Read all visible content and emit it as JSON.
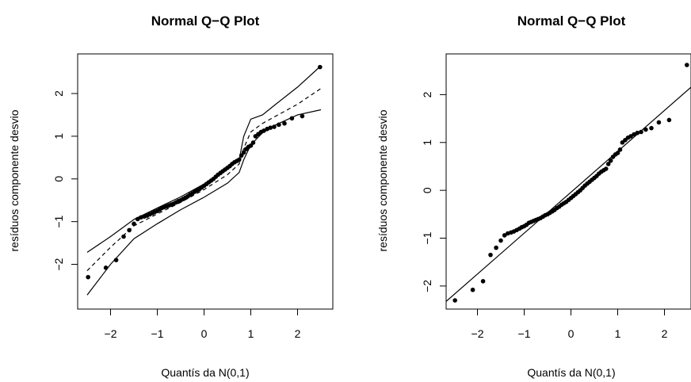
{
  "chart_data": [
    {
      "type": "scatter",
      "title": "Normal Q−Q Plot",
      "xlabel": "Quantís da N(0,1)",
      "ylabel": "resíduos componente desvio",
      "xlim": [
        -2.5,
        2.5
      ],
      "ylim": [
        -2.9,
        2.65
      ],
      "x_ticks": [
        -2,
        -1,
        0,
        1,
        2
      ],
      "y_ticks": [
        -2,
        -1,
        0,
        1,
        2
      ],
      "x_tick_labels": [
        "−2",
        "−1",
        "0",
        "1",
        "2"
      ],
      "y_tick_labels": [
        "−2",
        "−1",
        "0",
        "1",
        "2"
      ],
      "grid": false,
      "points": {
        "x": [
          -2.48,
          -2.1,
          -1.88,
          -1.72,
          -1.6,
          -1.5,
          -1.42,
          -1.35,
          -1.28,
          -1.22,
          -1.16,
          -1.1,
          -1.05,
          -1.0,
          -0.95,
          -0.9,
          -0.85,
          -0.8,
          -0.75,
          -0.7,
          -0.65,
          -0.6,
          -0.55,
          -0.5,
          -0.45,
          -0.4,
          -0.35,
          -0.3,
          -0.25,
          -0.2,
          -0.15,
          -0.1,
          -0.05,
          0.0,
          0.05,
          0.1,
          0.15,
          0.2,
          0.25,
          0.3,
          0.35,
          0.4,
          0.45,
          0.5,
          0.55,
          0.6,
          0.65,
          0.7,
          0.75,
          0.8,
          0.85,
          0.9,
          0.95,
          1.0,
          1.05,
          1.1,
          1.16,
          1.22,
          1.28,
          1.35,
          1.42,
          1.5,
          1.6,
          1.72,
          1.88,
          2.1,
          2.48
        ],
        "y": [
          -2.3,
          -2.08,
          -1.9,
          -1.35,
          -1.2,
          -1.05,
          -0.94,
          -0.9,
          -0.88,
          -0.86,
          -0.83,
          -0.8,
          -0.77,
          -0.75,
          -0.72,
          -0.68,
          -0.66,
          -0.64,
          -0.62,
          -0.6,
          -0.58,
          -0.55,
          -0.52,
          -0.5,
          -0.47,
          -0.44,
          -0.41,
          -0.37,
          -0.34,
          -0.3,
          -0.27,
          -0.24,
          -0.2,
          -0.16,
          -0.12,
          -0.08,
          -0.04,
          0.0,
          0.05,
          0.1,
          0.14,
          0.18,
          0.22,
          0.26,
          0.3,
          0.35,
          0.39,
          0.42,
          0.45,
          0.55,
          0.62,
          0.7,
          0.75,
          0.78,
          0.85,
          1.0,
          1.05,
          1.1,
          1.13,
          1.17,
          1.2,
          1.22,
          1.27,
          1.3,
          1.42,
          1.47,
          2.62
        ]
      },
      "envelope": {
        "x": [
          -2.5,
          -2.0,
          -1.5,
          -1.0,
          -0.5,
          0.0,
          0.5,
          0.75,
          0.85,
          1.0,
          1.25,
          1.5,
          2.0,
          2.5
        ],
        "mean": [
          -2.15,
          -1.6,
          -1.1,
          -0.82,
          -0.55,
          -0.25,
          0.1,
          0.35,
          0.72,
          1.1,
          1.3,
          1.45,
          1.75,
          2.12
        ],
        "upper": [
          -1.72,
          -1.35,
          -0.95,
          -0.68,
          -0.42,
          -0.12,
          0.22,
          0.45,
          1.0,
          1.4,
          1.5,
          1.72,
          2.15,
          2.65
        ],
        "lower": [
          -2.72,
          -2.0,
          -1.4,
          -1.05,
          -0.72,
          -0.43,
          -0.1,
          0.15,
          0.45,
          0.8,
          1.08,
          1.25,
          1.5,
          1.62
        ]
      }
    },
    {
      "type": "scatter",
      "title": "Normal Q−Q Plot",
      "xlabel": "Quantís da N(0,1)",
      "ylabel": "resíduos componente desvio",
      "xlim": [
        -2.5,
        2.5
      ],
      "ylim": [
        -2.3,
        2.62
      ],
      "x_ticks": [
        -2,
        -1,
        0,
        1,
        2
      ],
      "y_ticks": [
        -2,
        -1,
        0,
        1,
        2
      ],
      "x_tick_labels": [
        "−2",
        "−1",
        "0",
        "1",
        "2"
      ],
      "y_tick_labels": [
        "−2",
        "−1",
        "0",
        "1",
        "2"
      ],
      "grid": false,
      "points": {
        "x": [
          -2.48,
          -2.1,
          -1.88,
          -1.72,
          -1.6,
          -1.5,
          -1.42,
          -1.35,
          -1.28,
          -1.22,
          -1.16,
          -1.1,
          -1.05,
          -1.0,
          -0.95,
          -0.9,
          -0.85,
          -0.8,
          -0.75,
          -0.7,
          -0.65,
          -0.6,
          -0.55,
          -0.5,
          -0.45,
          -0.4,
          -0.35,
          -0.3,
          -0.25,
          -0.2,
          -0.15,
          -0.1,
          -0.05,
          0.0,
          0.05,
          0.1,
          0.15,
          0.2,
          0.25,
          0.3,
          0.35,
          0.4,
          0.45,
          0.5,
          0.55,
          0.6,
          0.65,
          0.7,
          0.75,
          0.8,
          0.85,
          0.9,
          0.95,
          1.0,
          1.05,
          1.1,
          1.16,
          1.22,
          1.28,
          1.35,
          1.42,
          1.5,
          1.6,
          1.72,
          1.88,
          2.1,
          2.48
        ],
        "y": [
          -2.3,
          -2.08,
          -1.9,
          -1.35,
          -1.2,
          -1.05,
          -0.94,
          -0.9,
          -0.88,
          -0.86,
          -0.83,
          -0.8,
          -0.77,
          -0.75,
          -0.72,
          -0.68,
          -0.66,
          -0.64,
          -0.62,
          -0.6,
          -0.58,
          -0.55,
          -0.52,
          -0.5,
          -0.47,
          -0.44,
          -0.41,
          -0.37,
          -0.34,
          -0.3,
          -0.27,
          -0.24,
          -0.2,
          -0.16,
          -0.12,
          -0.08,
          -0.04,
          0.0,
          0.05,
          0.1,
          0.14,
          0.18,
          0.22,
          0.26,
          0.3,
          0.35,
          0.39,
          0.42,
          0.45,
          0.55,
          0.62,
          0.7,
          0.75,
          0.78,
          0.85,
          1.0,
          1.05,
          1.1,
          1.13,
          1.17,
          1.2,
          1.22,
          1.27,
          1.3,
          1.42,
          1.47,
          2.62
        ]
      },
      "reference_line": {
        "intercept": -0.04,
        "slope": 0.855
      }
    }
  ]
}
